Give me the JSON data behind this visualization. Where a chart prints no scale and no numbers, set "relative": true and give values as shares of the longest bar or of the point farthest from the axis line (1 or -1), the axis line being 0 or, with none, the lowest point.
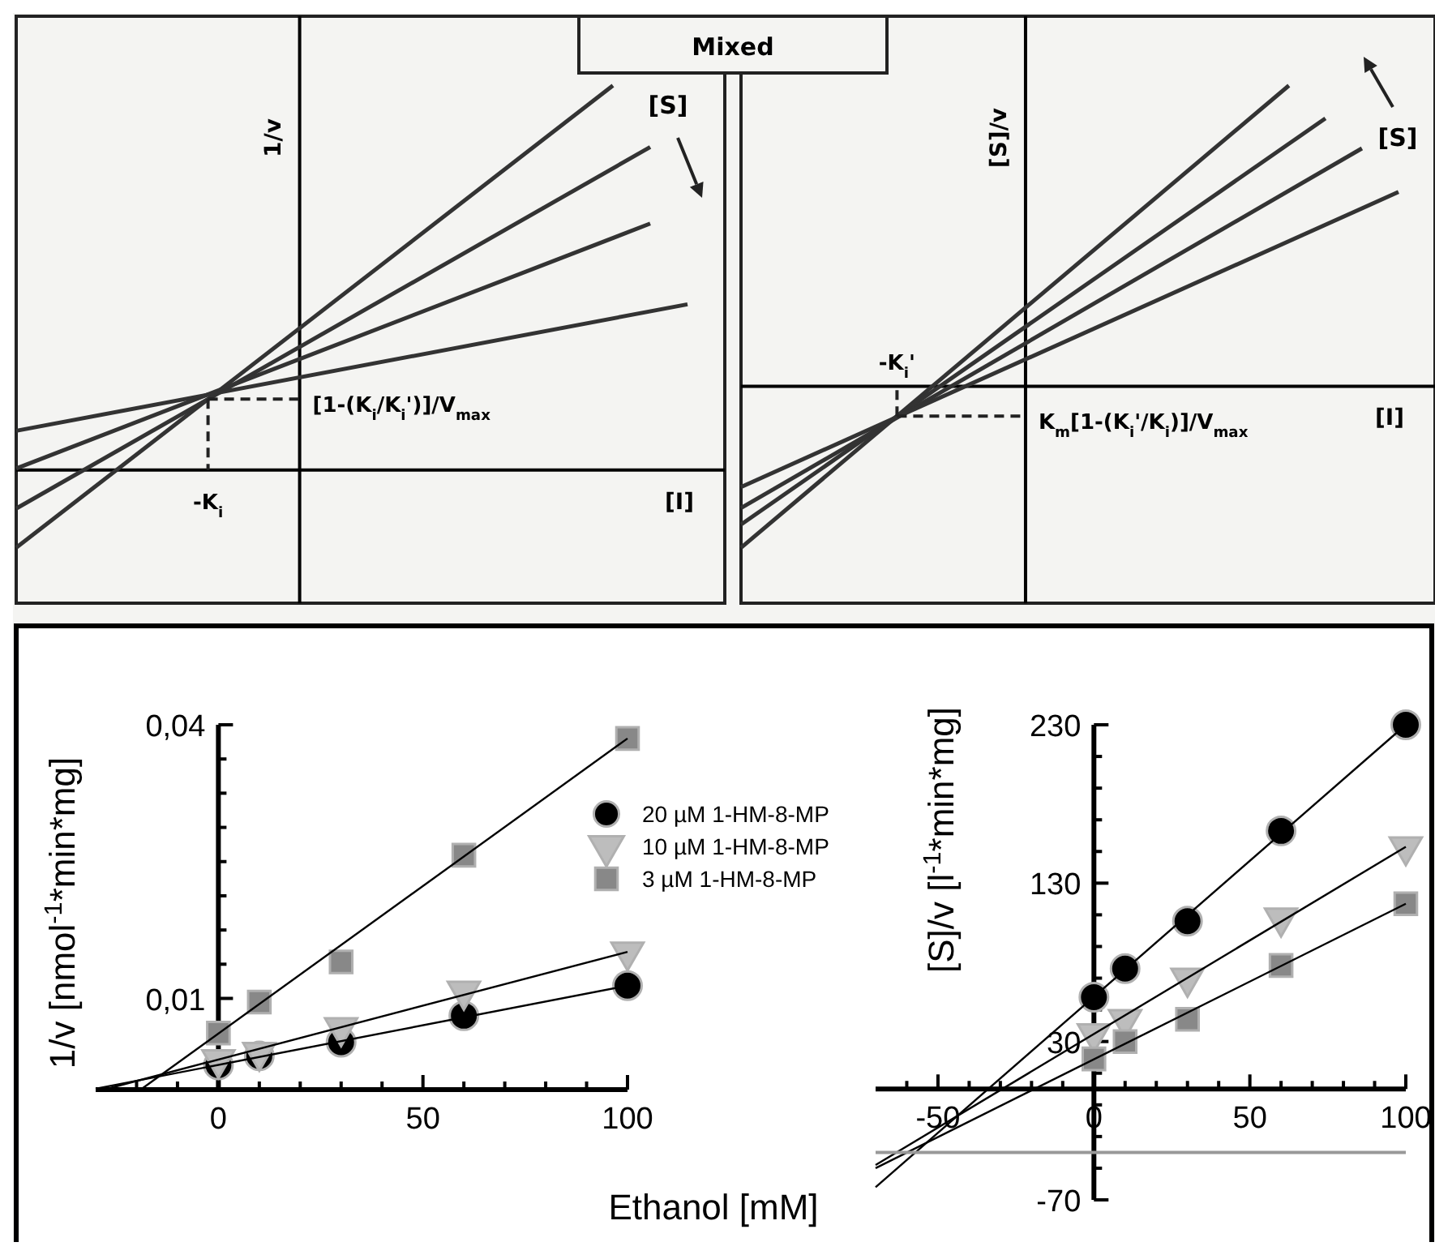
{
  "chart_data": [
    {
      "type": "line",
      "title": "Mixed",
      "relative": true,
      "xlabel": "[I]",
      "ylabel": "1/v",
      "categories": [
        null,
        null,
        null,
        null,
        null,
        null,
        null,
        null,
        null,
        null,
        null,
        null,
        null,
        null,
        null,
        null,
        null,
        null,
        null,
        null
      ],
      "series": [
        {
          "color": "#333333",
          "values": [
            -0.202,
            null,
            null,
            null,
            null,
            null,
            null,
            null,
            null,
            null,
            null,
            null,
            null,
            null,
            null,
            null,
            1.0,
            null,
            null,
            null
          ]
        },
        {
          "color": "#333333",
          "values": [
            -0.1,
            null,
            null,
            null,
            null,
            null,
            null,
            null,
            null,
            null,
            null,
            null,
            null,
            null,
            null,
            null,
            null,
            0.84,
            null,
            null
          ]
        },
        {
          "color": "#333333",
          "values": [
            0.004,
            null,
            null,
            null,
            null,
            null,
            null,
            null,
            null,
            null,
            null,
            null,
            null,
            null,
            null,
            null,
            null,
            0.641,
            null,
            null
          ]
        },
        {
          "color": "#333333",
          "values": [
            0.102,
            null,
            null,
            null,
            null,
            null,
            null,
            null,
            null,
            null,
            null,
            null,
            null,
            null,
            null,
            null,
            null,
            null,
            0.431,
            null
          ]
        }
      ],
      "annotations": [
        "[S]",
        "-K$_{i}$",
        "[1-(K$_{i}$/K$_{i}$')]/V$_{max}$"
      ]
    },
    {
      "type": "line",
      "relative": true,
      "xlabel": "[I]",
      "ylabel": "[S]/v",
      "categories": [
        null,
        null,
        null,
        null,
        null,
        null,
        null,
        null,
        null,
        null,
        null,
        null,
        null,
        null,
        null,
        null,
        null,
        null,
        null,
        null
      ],
      "series": [
        {
          "color": "#333333",
          "values": [
            -0.537,
            null,
            null,
            null,
            null,
            null,
            null,
            null,
            null,
            null,
            null,
            null,
            null,
            null,
            null,
            1.0,
            null,
            null,
            null,
            null
          ]
        },
        {
          "color": "#333333",
          "values": [
            -0.46,
            null,
            null,
            null,
            null,
            null,
            null,
            null,
            null,
            null,
            null,
            null,
            null,
            null,
            null,
            null,
            0.891,
            null,
            null,
            null
          ]
        },
        {
          "color": "#333333",
          "values": [
            -0.405,
            null,
            null,
            null,
            null,
            null,
            null,
            null,
            null,
            null,
            null,
            null,
            null,
            null,
            null,
            null,
            null,
            0.791,
            null,
            null
          ]
        },
        {
          "color": "#333333",
          "values": [
            -0.335,
            null,
            null,
            null,
            null,
            null,
            null,
            null,
            null,
            null,
            null,
            null,
            null,
            null,
            null,
            null,
            null,
            null,
            0.646,
            null
          ]
        }
      ],
      "annotations": [
        "[S]",
        "-K$_{i}$'",
        "K$_{m}$[1-(K$_{i}$'/K$_{i}$)]/V$_{max}$"
      ]
    },
    {
      "type": "scatter",
      "xlabel": "Ethanol [mM]",
      "ylabel": "1/v [nmol$^{-1}$*min*mg]",
      "xlim": [
        -30,
        100
      ],
      "ylim": [
        0,
        0.04
      ],
      "xticks": [
        {
          "value": -20,
          "label": null
        },
        {
          "value": -10,
          "label": null
        },
        0,
        {
          "value": 10,
          "label": null
        },
        {
          "value": 20,
          "label": null
        },
        {
          "value": 30,
          "label": null
        },
        {
          "value": 40,
          "label": null
        },
        50,
        {
          "value": 60,
          "label": null
        },
        {
          "value": 70,
          "label": null
        },
        {
          "value": 80,
          "label": null
        },
        {
          "value": 90,
          "label": null
        },
        100
      ],
      "yticks": [
        {
          "value": 0.01,
          "label": "0,01"
        },
        {
          "value": 0.01375,
          "label": null
        },
        {
          "value": 0.0175,
          "label": null
        },
        {
          "value": 0.02125,
          "label": null
        },
        {
          "value": 0.025,
          "label": null
        },
        {
          "value": 0.02875,
          "label": null
        },
        {
          "value": 0.0325,
          "label": null
        },
        {
          "value": 0.03625,
          "label": null
        },
        {
          "value": 0.04,
          "label": "0,04"
        }
      ],
      "legend": "top right",
      "series": [
        {
          "type": "line",
          "color": "#000000",
          "marker": "none",
          "x": [
            -30,
            100
          ],
          "values": [
            0.0001,
            0.0114
          ]
        },
        {
          "type": "line",
          "color": "#000000",
          "marker": "none",
          "x": [
            -28,
            100
          ],
          "values": [
            0,
            0.0151
          ]
        },
        {
          "type": "line",
          "color": "#000000",
          "marker": "none",
          "x": [
            -19,
            100
          ],
          "values": [
            0,
            0.0385
          ]
        },
        {
          "name": "20 µM 1-HM-8-MP",
          "color": "#000000",
          "marker": "circle",
          "x": [
            0,
            10,
            30,
            60,
            100
          ],
          "values": [
            0.0027,
            0.0037,
            0.0052,
            0.0081,
            0.0114
          ]
        },
        {
          "name": "10 µM 1-HM-8-MP",
          "color": "#bdbdbd",
          "marker": "triangle",
          "x": [
            0,
            10,
            30,
            60,
            100
          ],
          "values": [
            0.0033,
            0.0041,
            0.0068,
            0.0108,
            0.0151
          ]
        },
        {
          "name": "3 µM 1-HM-8-MP",
          "color": "#888888",
          "marker": "square",
          "x": [
            0,
            10,
            30,
            60,
            100
          ],
          "values": [
            0.0062,
            0.0096,
            0.014,
            0.0257,
            0.0385
          ]
        }
      ]
    },
    {
      "type": "scatter",
      "ylabel": "[S]/v [l$^{-1}$*min*mg]",
      "xlim": [
        -70,
        100
      ],
      "ylim": [
        -70,
        230
      ],
      "xticks": [
        {
          "value": -60,
          "label": null
        },
        -50,
        {
          "value": -40,
          "label": null
        },
        {
          "value": -30,
          "label": null
        },
        {
          "value": -20,
          "label": null
        },
        {
          "value": -10,
          "label": null
        },
        0,
        {
          "value": 10,
          "label": null
        },
        {
          "value": 20,
          "label": null
        },
        {
          "value": 30,
          "label": null
        },
        {
          "value": 40,
          "label": null
        },
        50,
        {
          "value": 60,
          "label": null
        },
        {
          "value": 70,
          "label": null
        },
        {
          "value": 80,
          "label": null
        },
        {
          "value": 90,
          "label": null
        },
        100
      ],
      "yticks": [
        -70,
        {
          "value": -50,
          "label": null
        },
        {
          "value": -30,
          "label": null
        },
        {
          "value": -10,
          "label": null
        },
        {
          "value": 10,
          "label": null
        },
        30,
        {
          "value": 50,
          "label": null
        },
        {
          "value": 70,
          "label": null
        },
        {
          "value": 90,
          "label": null
        },
        {
          "value": 110,
          "label": null
        },
        130,
        {
          "value": 150,
          "label": null
        },
        {
          "value": 170,
          "label": null
        },
        {
          "value": 190,
          "label": null
        },
        {
          "value": 210,
          "label": null
        },
        230
      ],
      "ref_lines": [
        {
          "axis": "y",
          "value": -40,
          "color": "#999999"
        }
      ],
      "series": [
        {
          "type": "line",
          "color": "#000000",
          "marker": "none",
          "x": [
            -70,
            100
          ],
          "values": [
            -62,
            230
          ]
        },
        {
          "type": "line",
          "color": "#000000",
          "marker": "none",
          "x": [
            -70,
            100
          ],
          "values": [
            -48,
            153
          ]
        },
        {
          "type": "line",
          "color": "#000000",
          "marker": "none",
          "x": [
            -70,
            100
          ],
          "values": [
            -50,
            117
          ]
        },
        {
          "color": "#000000",
          "marker": "circle",
          "x": [
            0,
            10,
            30,
            60,
            100
          ],
          "values": [
            58,
            76,
            106,
            163,
            230
          ]
        },
        {
          "color": "#bdbdbd",
          "marker": "triangle",
          "x": [
            0,
            10,
            30,
            60,
            100
          ],
          "values": [
            35,
            44,
            70,
            108,
            153
          ]
        },
        {
          "color": "#888888",
          "marker": "square",
          "x": [
            0,
            10,
            30,
            60,
            100
          ],
          "values": [
            19,
            30,
            44,
            78,
            117
          ]
        }
      ]
    }
  ]
}
